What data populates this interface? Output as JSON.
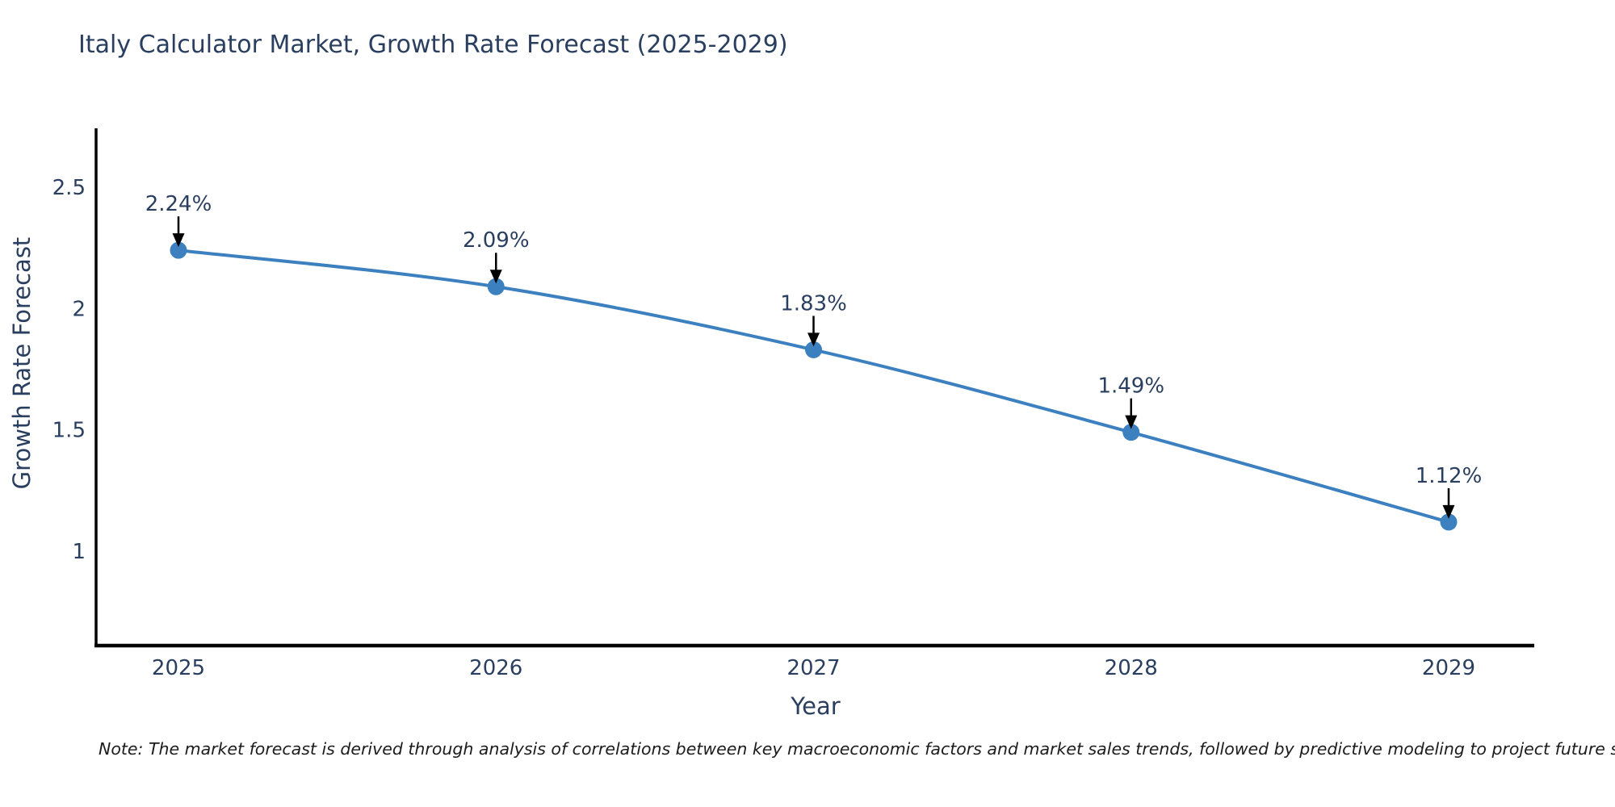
{
  "chart": {
    "note": "Note: The market forecast is derived through analysis of correlations between key macroeconomic factors and market sales trends, followed by predictive modeling to project future sales"
  },
  "chart_data": {
    "type": "line",
    "title": "Italy Calculator Market, Growth Rate Forecast (2025-2029)",
    "xlabel": "Year",
    "ylabel": "Growth Rate Forecast",
    "x": [
      2025,
      2026,
      2027,
      2028,
      2029
    ],
    "values": [
      2.24,
      2.09,
      1.83,
      1.49,
      1.12
    ],
    "point_labels": [
      "2.24%",
      "2.09%",
      "1.83%",
      "1.49%",
      "1.12%"
    ],
    "yticks": [
      2.5,
      2,
      1.5,
      1
    ],
    "ylim": [
      0.61,
      2.74
    ],
    "xlim": [
      2024.74,
      2029.27
    ],
    "grid": false,
    "legend": "none",
    "line_shape": "spline",
    "line_color": "#3c80c0",
    "marker_color": "#3c80c0",
    "arrow_color": "#000000",
    "axis_color": "#000000",
    "text_color": "#2a3f5f"
  }
}
